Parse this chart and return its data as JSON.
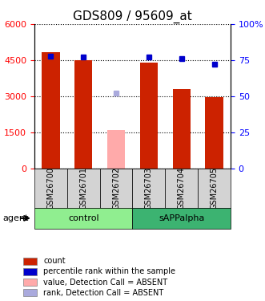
{
  "title": "GDS809 / 95609_at",
  "samples": [
    "GSM26700",
    "GSM26701",
    "GSM26702",
    "GSM26703",
    "GSM26704",
    "GSM26705"
  ],
  "counts": [
    4820,
    4500,
    1600,
    4400,
    3300,
    2950
  ],
  "percentile_ranks": [
    78,
    77,
    52,
    77,
    76,
    72
  ],
  "absent_flags": [
    false,
    false,
    true,
    false,
    false,
    false
  ],
  "groups": [
    {
      "label": "control",
      "samples": [
        0,
        1,
        2
      ],
      "color": "#90ee90"
    },
    {
      "label": "sAPPalpha",
      "samples": [
        3,
        4,
        5
      ],
      "color": "#3cb371"
    }
  ],
  "left_ylim": [
    0,
    6000
  ],
  "left_yticks": [
    0,
    1500,
    3000,
    4500,
    6000
  ],
  "left_ytick_labels": [
    "0",
    "1500",
    "3000",
    "4500",
    "6000"
  ],
  "right_ylim": [
    0,
    100
  ],
  "right_yticks": [
    0,
    25,
    50,
    75,
    100
  ],
  "right_ytick_labels": [
    "0",
    "25",
    "50",
    "75",
    "100%"
  ],
  "bar_color_normal": "#cc2200",
  "bar_color_absent": "#ffaaaa",
  "dot_color_normal": "#0000cc",
  "dot_color_absent": "#aaaadd",
  "legend_items": [
    {
      "label": "count",
      "color": "#cc2200",
      "marker": "s"
    },
    {
      "label": "percentile rank within the sample",
      "color": "#0000cc",
      "marker": "s"
    },
    {
      "label": "value, Detection Call = ABSENT",
      "color": "#ffaaaa",
      "marker": "s"
    },
    {
      "label": "rank, Detection Call = ABSENT",
      "color": "#aaaadd",
      "marker": "s"
    }
  ],
  "agent_label": "agent",
  "bg_color_samples": "#d3d3d3",
  "grid_color": "#000000",
  "title_fontsize": 11,
  "tick_fontsize": 8
}
